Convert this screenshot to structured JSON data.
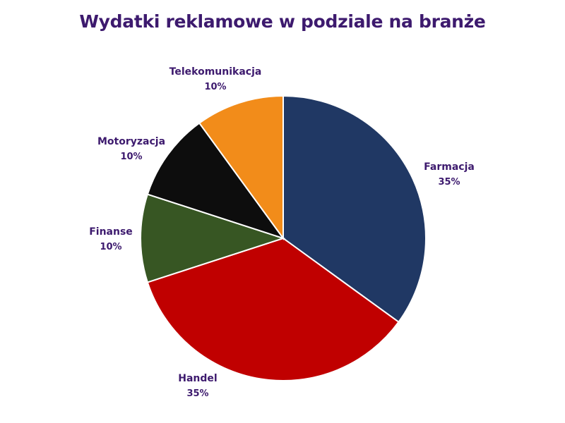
{
  "chart_data": {
    "type": "pie",
    "title": "Wydatki reklamowe w podziale na branże",
    "categories": [
      "Farmacja",
      "Handel",
      "Finanse",
      "Motoryzacja",
      "Telekomunikacja"
    ],
    "values": [
      35,
      35,
      10,
      10,
      10
    ],
    "value_labels": [
      "35%",
      "35%",
      "10%",
      "10%",
      "10%"
    ],
    "colors": [
      "#203864",
      "#c00000",
      "#375623",
      "#0d0d0d",
      "#f28c1a"
    ],
    "start_angle": "12 o'clock",
    "direction": "clockwise",
    "legend": "none",
    "labels_outside": true
  }
}
